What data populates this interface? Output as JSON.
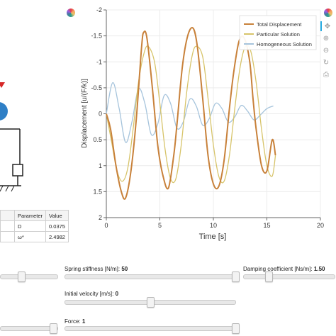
{
  "table": {
    "headers": [
      "Parameter",
      "Value"
    ],
    "rows": [
      {
        "name": "D",
        "value": "0.0375"
      },
      {
        "name": "ω*",
        "value": "2.4982"
      }
    ]
  },
  "controls": {
    "spring": {
      "label": "Spring stiffness [N/m]: ",
      "value": "50"
    },
    "damping": {
      "label": "Damping coefficient [Ns/m]: ",
      "value": "1.50"
    },
    "velocity": {
      "label": "Initial velocity [m/s]: ",
      "value": "0"
    },
    "force": {
      "label": "Force: ",
      "value": "1"
    }
  },
  "toolbar": {
    "icons": [
      "pan-icon",
      "box-zoom-icon",
      "wheel-zoom-icon",
      "reset-icon",
      "save-icon"
    ]
  },
  "colors": {
    "total": "#c8813a",
    "particular": "#d7c46a",
    "homogeneous": "#a6c4dc",
    "mass": "#2f7fc6",
    "force_arrow": "#d62828"
  },
  "chart_data": {
    "type": "line",
    "xlabel": "Time [s]",
    "ylabel": "Displacement [u/(F/k)]",
    "xlim": [
      0,
      20
    ],
    "ylim": [
      2,
      -2
    ],
    "x_ticks": [
      "0",
      "5",
      "10",
      "15",
      "20"
    ],
    "y_ticks": [
      "-2",
      "-1.5",
      "-1",
      "-0.5",
      "0",
      "0.5",
      "1",
      "1.5",
      "2"
    ],
    "legend_position": "top-right",
    "grid": true,
    "series": [
      {
        "name": "Total Displacement",
        "color": "#c8813a",
        "x": [
          0,
          0.4,
          0.9,
          1.4,
          1.8,
          2.3,
          2.8,
          3.3,
          3.5,
          3.8,
          4.3,
          4.8,
          5.3,
          5.8,
          6.3,
          6.6,
          7.1,
          7.6,
          8.1,
          8.5,
          9.0,
          9.5,
          10.0,
          10.5,
          11.0,
          11.5,
          11.9,
          12.4,
          12.9,
          13.4,
          13.7,
          14.0,
          14.5,
          15.0,
          15.5,
          15.8
        ],
        "y": [
          0,
          0.3,
          1.0,
          1.5,
          1.62,
          1.1,
          0.1,
          -1.3,
          -1.57,
          -1.45,
          -0.5,
          0.6,
          1.2,
          1.43,
          0.8,
          0.2,
          -0.9,
          -1.5,
          -1.65,
          -1.3,
          -0.3,
          0.8,
          1.35,
          1.4,
          0.9,
          -0.1,
          -0.8,
          -1.4,
          -1.45,
          -1.0,
          -0.3,
          0.3,
          1.0,
          1.1,
          0.5,
          0.8
        ]
      },
      {
        "name": "Particular Solution",
        "color": "#d7c46a",
        "x": [
          0,
          0.5,
          1.0,
          1.5,
          2.0,
          2.5,
          3.0,
          3.5,
          3.9,
          4.5,
          5.0,
          5.5,
          6.0,
          6.5,
          7.0,
          7.5,
          8.0,
          8.4,
          9.0,
          9.5,
          10.0,
          10.5,
          11.0,
          11.5,
          12.0,
          12.5,
          13.0,
          13.5,
          14.0,
          14.5,
          15.0,
          15.5,
          15.8
        ],
        "y": [
          0,
          0.55,
          1.1,
          1.3,
          1.05,
          0.3,
          -0.6,
          -1.15,
          -1.3,
          -1.0,
          -0.2,
          0.7,
          1.25,
          1.25,
          0.6,
          -0.4,
          -1.1,
          -1.3,
          -1.1,
          -0.3,
          0.6,
          1.2,
          1.3,
          0.8,
          -0.1,
          -0.9,
          -1.3,
          -1.2,
          -0.6,
          0.3,
          1.0,
          1.2,
          0.8
        ]
      },
      {
        "name": "Homogeneous Solution",
        "color": "#a6c4dc",
        "x": [
          0,
          0.6,
          1.2,
          1.8,
          2.4,
          3.0,
          3.6,
          4.2,
          4.8,
          5.4,
          6.0,
          6.6,
          7.2,
          7.8,
          8.4,
          9.0,
          9.6,
          10.2,
          10.8,
          11.4,
          12.0,
          12.6,
          13.2,
          13.8,
          14.4,
          15.0,
          15.6
        ],
        "y": [
          0,
          -0.6,
          -0.1,
          0.55,
          0.15,
          -0.48,
          -0.2,
          0.4,
          0.2,
          -0.35,
          -0.2,
          0.28,
          0.15,
          -0.28,
          -0.15,
          0.22,
          0.1,
          -0.2,
          -0.1,
          0.16,
          0.06,
          -0.16,
          -0.05,
          0.12,
          0.02,
          -0.1,
          -0.15
        ]
      }
    ]
  }
}
